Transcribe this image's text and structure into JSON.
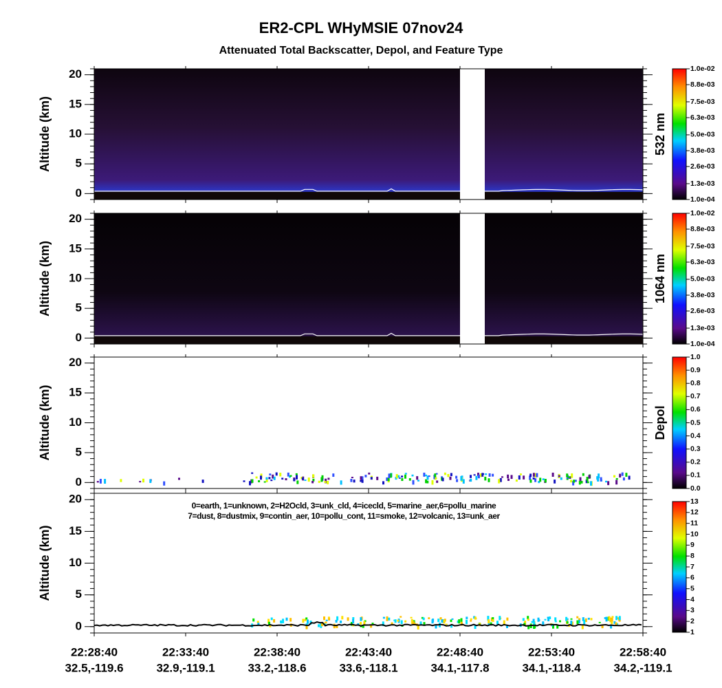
{
  "title": "ER2-CPL WHyMSIE 07nov24",
  "subtitle": "Attenuated Total Backscatter, Depol, and Feature Type",
  "chart_data": [
    {
      "type": "heatmap",
      "ylabel": "Altitude (km)",
      "ylim": [
        -1,
        21
      ],
      "yticks": [
        0,
        5,
        10,
        15,
        20
      ],
      "colorbar": {
        "label": "532 nm",
        "clim": [
          0.0001,
          0.01
        ],
        "ticks": [
          {
            "value": 0.0001,
            "label": "1.0e-04"
          },
          {
            "value": 0.0013,
            "label": "1.3e-03"
          },
          {
            "value": 0.0026,
            "label": "2.6e-03"
          },
          {
            "value": 0.0038,
            "label": "3.8e-03"
          },
          {
            "value": 0.005,
            "label": "5.0e-03"
          },
          {
            "value": 0.0063,
            "label": "6.3e-03"
          },
          {
            "value": 0.0075,
            "label": "7.5e-03"
          },
          {
            "value": 0.0088,
            "label": "8.8e-03"
          },
          {
            "value": 0.01,
            "label": "1.0e-02"
          }
        ]
      }
    },
    {
      "type": "heatmap",
      "ylabel": "Altitude (km)",
      "ylim": [
        -1,
        21
      ],
      "yticks": [
        0,
        5,
        10,
        15,
        20
      ],
      "colorbar": {
        "label": "1064 nm",
        "clim": [
          0.0001,
          0.01
        ],
        "ticks": [
          {
            "value": 0.0001,
            "label": "1.0e-04"
          },
          {
            "value": 0.0013,
            "label": "1.3e-03"
          },
          {
            "value": 0.0026,
            "label": "2.6e-03"
          },
          {
            "value": 0.0038,
            "label": "3.8e-03"
          },
          {
            "value": 0.005,
            "label": "5.0e-03"
          },
          {
            "value": 0.0063,
            "label": "6.3e-03"
          },
          {
            "value": 0.0075,
            "label": "7.5e-03"
          },
          {
            "value": 0.0088,
            "label": "8.8e-03"
          },
          {
            "value": 0.01,
            "label": "1.0e-02"
          }
        ]
      }
    },
    {
      "type": "sparse",
      "ylabel": "Altitude (km)",
      "ylim": [
        -1,
        21
      ],
      "yticks": [
        0,
        5,
        10,
        15,
        20
      ],
      "colorbar": {
        "label": "Depol",
        "clim": [
          0,
          1
        ],
        "ticks": [
          {
            "value": 0,
            "label": "0.0"
          },
          0.1,
          0.2,
          0.3,
          0.4,
          0.5,
          0.6,
          0.7,
          0.8,
          0.9,
          {
            "value": 1,
            "label": "1.0"
          }
        ]
      }
    },
    {
      "type": "feature",
      "ylabel": "Altitude (km)",
      "ylim": [
        -1,
        21
      ],
      "yticks": [
        0,
        5,
        10,
        15,
        20
      ],
      "annotations": [
        "0=earth, 1=unknown, 2=H2Ocld, 3=unk_cld, 4=icecld, 5=marine_aer,6=pollu_marine",
        "7=dust, 8=dustmix, 9=contin_aer, 10=pollu_cont, 11=smoke, 12=volcanic, 13=unk_aer"
      ],
      "colorbar": {
        "clim": [
          1,
          13
        ],
        "ticks": [
          1,
          2,
          3,
          4,
          5,
          6,
          7,
          8,
          9,
          10,
          11,
          12,
          13
        ]
      },
      "xlim": [
        "22:28:40",
        "22:58:40"
      ],
      "xticks": [
        {
          "time": "22:28:40",
          "position": "32.5,-119.6"
        },
        {
          "time": "22:33:40",
          "position": "32.9,-119.1"
        },
        {
          "time": "22:38:40",
          "position": "33.2,-118.6"
        },
        {
          "time": "22:43:40",
          "position": "33.6,-118.1"
        },
        {
          "time": "22:48:40",
          "position": "34.1,-117.8"
        },
        {
          "time": "22:53:40",
          "position": "34.1,-118.4"
        },
        {
          "time": "22:58:40",
          "position": "34.2,-119.1"
        }
      ]
    }
  ]
}
